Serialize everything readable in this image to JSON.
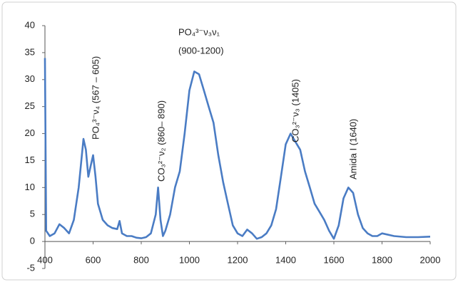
{
  "chart_data": {
    "type": "line",
    "x": [
      400,
      405,
      420,
      440,
      460,
      480,
      500,
      520,
      540,
      560,
      570,
      580,
      590,
      600,
      610,
      620,
      640,
      660,
      680,
      700,
      710,
      720,
      740,
      760,
      780,
      800,
      820,
      840,
      860,
      870,
      880,
      890,
      900,
      920,
      940,
      960,
      980,
      1000,
      1020,
      1040,
      1060,
      1080,
      1100,
      1120,
      1140,
      1160,
      1180,
      1200,
      1220,
      1240,
      1260,
      1280,
      1300,
      1320,
      1340,
      1360,
      1380,
      1400,
      1420,
      1440,
      1460,
      1480,
      1500,
      1520,
      1540,
      1560,
      1580,
      1600,
      1620,
      1640,
      1660,
      1680,
      1700,
      1720,
      1740,
      1760,
      1780,
      1800,
      1850,
      1900,
      1950,
      2000
    ],
    "series": [
      {
        "color": "#4a7cc4",
        "values": [
          34,
          2,
          1,
          1.5,
          3.2,
          2.5,
          1.5,
          4,
          10,
          19,
          17,
          12,
          14,
          16,
          12,
          7,
          4,
          3,
          2.5,
          2.3,
          3.8,
          1.5,
          1,
          1,
          0.7,
          0.6,
          0.8,
          1.5,
          5,
          10,
          4,
          1,
          2,
          5,
          10,
          13,
          20,
          28,
          31.5,
          31,
          28,
          25,
          22,
          16,
          11,
          7,
          3,
          1.5,
          1,
          2.2,
          1.5,
          0.5,
          0.8,
          1.5,
          3,
          6,
          12,
          18,
          20,
          18.5,
          17,
          13,
          10,
          7,
          5.5,
          4,
          2,
          0.5,
          3,
          8,
          10,
          9,
          5,
          2.5,
          1.5,
          1,
          1,
          1.5,
          1,
          0.8,
          0.8,
          0.9
        ]
      }
    ],
    "xlim": [
      400,
      2000
    ],
    "xticks": [
      400,
      600,
      800,
      1000,
      1200,
      1400,
      1600,
      1800,
      2000
    ],
    "ylim": [
      -5,
      40
    ],
    "yticks": [
      -5,
      0,
      5,
      10,
      15,
      20,
      25,
      30,
      35,
      40
    ],
    "annotations": [
      "PO₄³⁻ν₄ (567 – 605)",
      "PO₄³⁻ν₃ν₁",
      "(900-1200)",
      "CO₃²⁻ν₂ (860– 890)",
      "CO₃²⁻ν₃ (1405)",
      "Amida I (1640)"
    ]
  }
}
